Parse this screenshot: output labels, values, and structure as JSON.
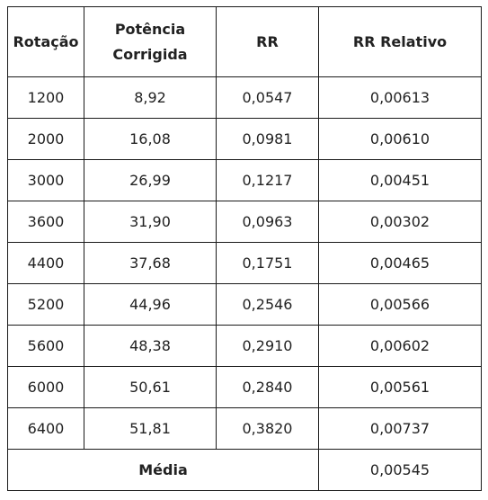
{
  "table": {
    "headers": [
      "Rotação",
      "Potência Corrigida",
      "RR",
      "RR Relativo"
    ],
    "rows": [
      [
        "1200",
        "8,92",
        "0,0547",
        "0,00613"
      ],
      [
        "2000",
        "16,08",
        "0,0981",
        "0,00610"
      ],
      [
        "3000",
        "26,99",
        "0,1217",
        "0,00451"
      ],
      [
        "3600",
        "31,90",
        "0,0963",
        "0,00302"
      ],
      [
        "4400",
        "37,68",
        "0,1751",
        "0,00465"
      ],
      [
        "5200",
        "44,96",
        "0,2546",
        "0,00566"
      ],
      [
        "5600",
        "48,38",
        "0,2910",
        "0,00602"
      ],
      [
        "6000",
        "50,61",
        "0,2840",
        "0,00561"
      ],
      [
        "6400",
        "51,81",
        "0,3820",
        "0,00737"
      ]
    ],
    "footer": {
      "label": "Média",
      "value": "0,00545"
    }
  }
}
